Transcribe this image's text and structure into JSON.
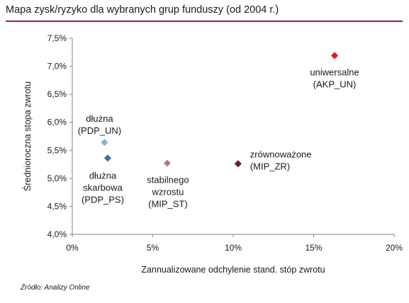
{
  "title": "Mapa zysk/ryzyko dla wybranych grup funduszy (od 2004 r.)",
  "source": "Źródło: Analizy Online",
  "chart_data": {
    "type": "scatter",
    "xlabel": "Zannualizowane odchylenie stand. stóp zwrotu",
    "ylabel": "Średnioroczna stopa zwrotu",
    "xlim": [
      0,
      20
    ],
    "ylim": [
      4.0,
      7.5
    ],
    "x_ticks": [
      "0%",
      "5%",
      "10%",
      "15%",
      "20%"
    ],
    "y_ticks": [
      "4,0%",
      "4,5%",
      "5,0%",
      "5,5%",
      "6,0%",
      "6,5%",
      "7,0%",
      "7,5%"
    ],
    "grid": false,
    "points": [
      {
        "label_lines": [
          "uniwersalne",
          "(AKP_UN)"
        ],
        "x": 16.3,
        "y": 7.19,
        "color": "#e02020"
      },
      {
        "label_lines": [
          "dłużna",
          "(PDP_UN)"
        ],
        "x": 2.0,
        "y": 5.64,
        "color": "#8fb3c8"
      },
      {
        "label_lines": [
          "dłużna",
          "skarbowa",
          "(PDP_PS)"
        ],
        "x": 2.2,
        "y": 5.36,
        "color": "#3d6e8f"
      },
      {
        "label_lines": [
          "stabilnego",
          "wzrostu",
          "(MIP_ST)"
        ],
        "x": 5.9,
        "y": 5.27,
        "color": "#b37aa3"
      },
      {
        "label_lines": [
          "zrównoważone",
          "(MIP_ZR)"
        ],
        "x": 10.3,
        "y": 5.26,
        "color": "#6b1a45"
      }
    ]
  }
}
